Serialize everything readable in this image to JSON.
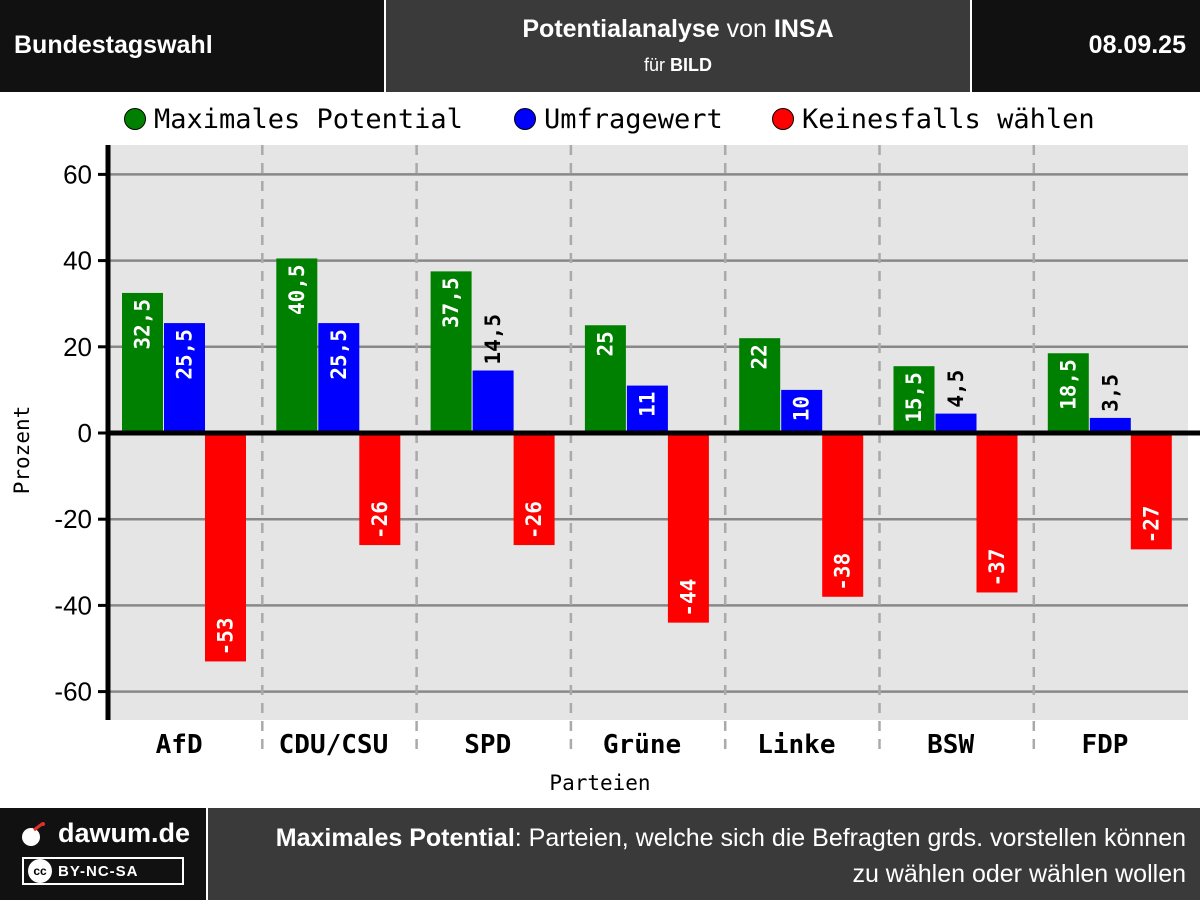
{
  "header": {
    "left": "Bundestagswahl",
    "title_bold": "Potentialanalyse",
    "title_mid": " von ",
    "title_bold2": "INSA",
    "subtitle_prefix": "für ",
    "subtitle_bold": "BILD",
    "date": "08.09.25"
  },
  "chart_data": {
    "type": "bar",
    "categories": [
      "AfD",
      "CDU/CSU",
      "SPD",
      "Grüne",
      "Linke",
      "BSW",
      "FDP"
    ],
    "series": [
      {
        "name": "Maximales Potential",
        "color": "#008000",
        "values": [
          32.5,
          40.5,
          37.5,
          25,
          22,
          15.5,
          18.5
        ],
        "labels": [
          "32,5",
          "40,5",
          "37,5",
          "25",
          "22",
          "15,5",
          "18,5"
        ]
      },
      {
        "name": "Umfragewert",
        "color": "#0000ff",
        "values": [
          25.5,
          25.5,
          14.5,
          11,
          10,
          4.5,
          3.5
        ],
        "labels": [
          "25,5",
          "25,5",
          "14,5",
          "11",
          "10",
          "4,5",
          "3,5"
        ]
      },
      {
        "name": "Keinesfalls wählen",
        "color": "#ff0000",
        "values": [
          -53,
          -26,
          -26,
          -44,
          -38,
          -37,
          -27
        ],
        "labels": [
          "-53",
          "-26",
          "-26",
          "-44",
          "-38",
          "-37",
          "-27"
        ]
      }
    ],
    "xlabel": "Parteien",
    "ylabel": "Prozent",
    "ylim": [
      -67,
      67
    ],
    "yticks": [
      60,
      40,
      20,
      0,
      -20,
      -40,
      -60
    ],
    "grid": true,
    "legend_position": "top"
  },
  "footer": {
    "brand": "dawum.de",
    "license": "BY-NC-SA",
    "cc_symbol": "cc",
    "note_bold": "Maximales Potential",
    "note_rest": ": Parteien, welche sich die Befragten grds. vorstellen können zu wählen oder wählen wollen"
  }
}
